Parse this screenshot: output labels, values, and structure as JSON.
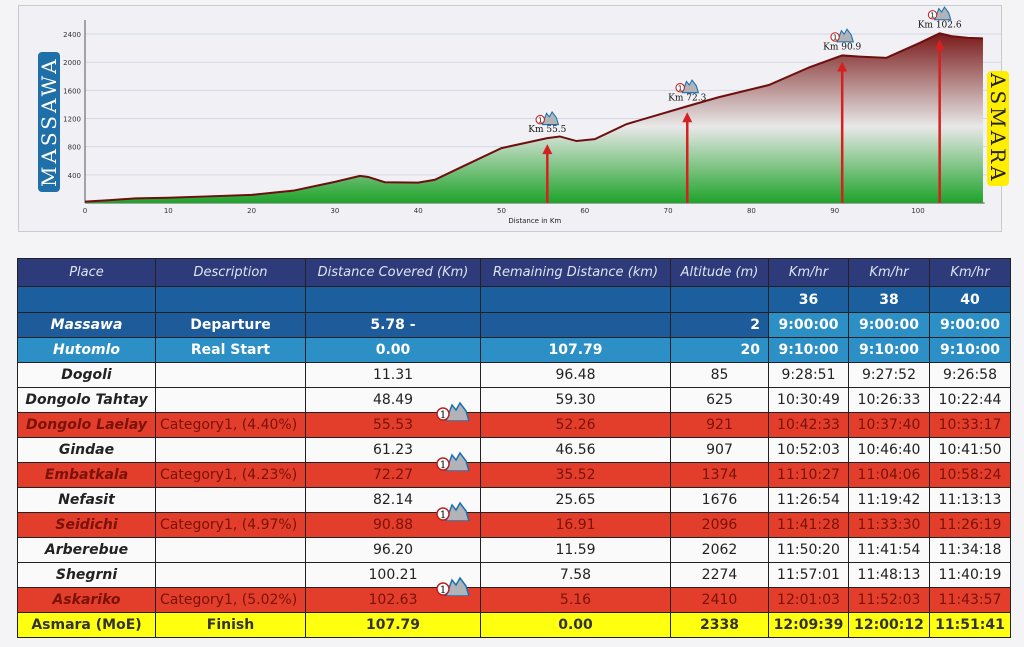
{
  "chart_data": {
    "type": "area",
    "title": "",
    "xlabel": "Distance in Km",
    "ylabel": "",
    "xlim": [
      0,
      110
    ],
    "ylim": [
      0,
      2600
    ],
    "x_ticks": [
      0,
      10,
      20,
      30,
      40,
      50,
      60,
      70,
      80,
      90,
      100
    ],
    "y_ticks": [
      400,
      800,
      1200,
      1600,
      2000,
      2400
    ],
    "grid": true,
    "start_label": "MASSAWA",
    "end_label": "ASMARA",
    "profile": [
      [
        0,
        20
      ],
      [
        3,
        40
      ],
      [
        6,
        65
      ],
      [
        10,
        75
      ],
      [
        15,
        95
      ],
      [
        20,
        115
      ],
      [
        25,
        175
      ],
      [
        28,
        250
      ],
      [
        30,
        300
      ],
      [
        33,
        385
      ],
      [
        34,
        370
      ],
      [
        36,
        295
      ],
      [
        40,
        290
      ],
      [
        42,
        330
      ],
      [
        45,
        500
      ],
      [
        50,
        780
      ],
      [
        55.5,
        921
      ],
      [
        57,
        945
      ],
      [
        59,
        880
      ],
      [
        61.2,
        907
      ],
      [
        65,
        1120
      ],
      [
        72.3,
        1374
      ],
      [
        76,
        1500
      ],
      [
        82.1,
        1676
      ],
      [
        87,
        1930
      ],
      [
        90.9,
        2096
      ],
      [
        93,
        2080
      ],
      [
        96.2,
        2062
      ],
      [
        100.2,
        2274
      ],
      [
        102.6,
        2410
      ],
      [
        104,
        2370
      ],
      [
        106,
        2345
      ],
      [
        107.8,
        2338
      ]
    ],
    "markers": [
      {
        "x": 55.5,
        "label": "Km 55.5"
      },
      {
        "x": 72.3,
        "label": "Km 72.3"
      },
      {
        "x": 90.9,
        "label": "Km 90.9"
      },
      {
        "x": 102.6,
        "label": "Km 102.6"
      }
    ],
    "colors": {
      "edge": "#6e0f0f",
      "fill_top": "#7a1a1a",
      "fill_mid": "#e8e8e8",
      "fill_bottom": "#1fa32a",
      "marker": "#d62020"
    }
  },
  "table": {
    "headers": [
      "Place",
      "Description",
      "Distance Covered (Km)",
      "Remaining Distance (km)",
      "Altitude (m)",
      "Km/hr",
      "Km/hr",
      "Km/hr"
    ],
    "speeds": [
      "36",
      "38",
      "40"
    ],
    "rows": [
      {
        "type": "dep",
        "place": "Massawa",
        "desc": "Departure",
        "dist": "5.78 -",
        "rem": "",
        "alt": "2",
        "t": [
          "9:00:00",
          "9:00:00",
          "9:00:00"
        ]
      },
      {
        "type": "real",
        "place": "Hutomlo",
        "desc": "Real Start",
        "dist": "0.00",
        "rem": "107.79",
        "alt": "20",
        "t": [
          "9:10:00",
          "9:10:00",
          "9:10:00"
        ]
      },
      {
        "type": "plain",
        "place": "Dogoli",
        "desc": "",
        "dist": "11.31",
        "rem": "96.48",
        "alt": "85",
        "t": [
          "9:28:51",
          "9:27:52",
          "9:26:58"
        ]
      },
      {
        "type": "plain",
        "place": "Dongolo Tahtay",
        "desc": "",
        "dist": "48.49",
        "rem": "59.30",
        "alt": "625",
        "t": [
          "10:30:49",
          "10:26:33",
          "10:22:44"
        ]
      },
      {
        "type": "climb",
        "place": "Dongolo Laelay",
        "desc": "Category1, (4.40%)",
        "dist": "55.53",
        "rem": "52.26",
        "alt": "921",
        "t": [
          "10:42:33",
          "10:37:40",
          "10:33:17"
        ]
      },
      {
        "type": "plain",
        "place": "Gindae",
        "desc": "",
        "dist": "61.23",
        "rem": "46.56",
        "alt": "907",
        "t": [
          "10:52:03",
          "10:46:40",
          "10:41:50"
        ]
      },
      {
        "type": "climb",
        "place": "Embatkala",
        "desc": "Category1, (4.23%)",
        "dist": "72.27",
        "rem": "35.52",
        "alt": "1374",
        "t": [
          "11:10:27",
          "11:04:06",
          "10:58:24"
        ]
      },
      {
        "type": "plain",
        "place": "Nefasit",
        "desc": "",
        "dist": "82.14",
        "rem": "25.65",
        "alt": "1676",
        "t": [
          "11:26:54",
          "11:19:42",
          "11:13:13"
        ]
      },
      {
        "type": "climb",
        "place": "Seidichi",
        "desc": "Category1, (4.97%)",
        "dist": "90.88",
        "rem": "16.91",
        "alt": "2096",
        "t": [
          "11:41:28",
          "11:33:30",
          "11:26:19"
        ]
      },
      {
        "type": "plain",
        "place": "Arberebue",
        "desc": "",
        "dist": "96.20",
        "rem": "11.59",
        "alt": "2062",
        "t": [
          "11:50:20",
          "11:41:54",
          "11:34:18"
        ]
      },
      {
        "type": "plain",
        "place": "Shegrni",
        "desc": "",
        "dist": "100.21",
        "rem": "7.58",
        "alt": "2274",
        "t": [
          "11:57:01",
          "11:48:13",
          "11:40:19"
        ]
      },
      {
        "type": "climb",
        "place": "Askariko",
        "desc": "Category1, (5.02%)",
        "dist": "102.63",
        "rem": "5.16",
        "alt": "2410",
        "t": [
          "12:01:03",
          "11:52:03",
          "11:43:57"
        ]
      },
      {
        "type": "fin",
        "place": "Asmara (MoE)",
        "desc": "Finish",
        "dist": "107.79",
        "rem": "0.00",
        "alt": "2338",
        "t": [
          "12:09:39",
          "12:00:12",
          "11:51:41"
        ]
      }
    ]
  }
}
